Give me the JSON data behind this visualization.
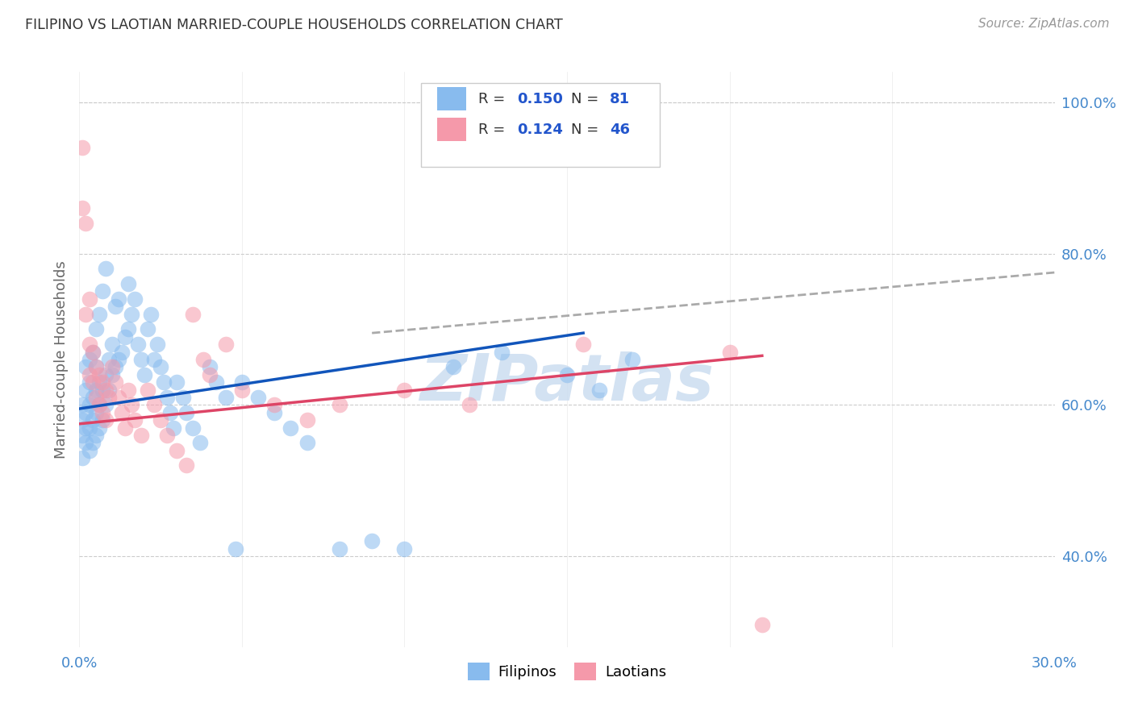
{
  "title": "FILIPINO VS LAOTIAN MARRIED-COUPLE HOUSEHOLDS CORRELATION CHART",
  "source": "Source: ZipAtlas.com",
  "ylabel": "Married-couple Households",
  "xlim": [
    0.0,
    0.3
  ],
  "ylim": [
    0.28,
    1.04
  ],
  "xtick_positions": [
    0.0,
    0.05,
    0.1,
    0.15,
    0.2,
    0.25,
    0.3
  ],
  "ytick_vals_right": [
    1.0,
    0.8,
    0.6,
    0.4
  ],
  "ytick_labels_right": [
    "100.0%",
    "80.0%",
    "60.0%",
    "40.0%"
  ],
  "filipino_color": "#88bbee",
  "laotian_color": "#f599aa",
  "filipino_line_color": "#1155bb",
  "laotian_line_color": "#dd4466",
  "dashed_line_color": "#aaaaaa",
  "watermark_color": "#ccddf0",
  "background_color": "#ffffff",
  "grid_color": "#cccccc",
  "title_color": "#333333",
  "source_color": "#999999",
  "axis_label_color": "#666666",
  "right_tick_color": "#4488cc",
  "bottom_tick_color": "#4488cc",
  "filipino_r": "0.150",
  "filipino_n": "81",
  "laotian_r": "0.124",
  "laotian_n": "46",
  "filipino_x": [
    0.001,
    0.001,
    0.001,
    0.001,
    0.002,
    0.002,
    0.002,
    0.002,
    0.002,
    0.003,
    0.003,
    0.003,
    0.003,
    0.003,
    0.004,
    0.004,
    0.004,
    0.004,
    0.005,
    0.005,
    0.005,
    0.005,
    0.005,
    0.006,
    0.006,
    0.006,
    0.006,
    0.007,
    0.007,
    0.007,
    0.008,
    0.008,
    0.008,
    0.009,
    0.009,
    0.01,
    0.01,
    0.011,
    0.011,
    0.012,
    0.012,
    0.013,
    0.014,
    0.015,
    0.015,
    0.016,
    0.017,
    0.018,
    0.019,
    0.02,
    0.021,
    0.022,
    0.023,
    0.024,
    0.025,
    0.026,
    0.027,
    0.028,
    0.029,
    0.03,
    0.032,
    0.033,
    0.035,
    0.037,
    0.04,
    0.042,
    0.045,
    0.048,
    0.05,
    0.055,
    0.06,
    0.065,
    0.07,
    0.08,
    0.09,
    0.1,
    0.115,
    0.13,
    0.15,
    0.16,
    0.17
  ],
  "filipino_y": [
    0.53,
    0.56,
    0.58,
    0.6,
    0.55,
    0.57,
    0.59,
    0.62,
    0.65,
    0.54,
    0.57,
    0.6,
    0.63,
    0.66,
    0.55,
    0.58,
    0.61,
    0.67,
    0.56,
    0.59,
    0.62,
    0.65,
    0.7,
    0.57,
    0.6,
    0.63,
    0.72,
    0.58,
    0.62,
    0.75,
    0.6,
    0.64,
    0.78,
    0.62,
    0.66,
    0.64,
    0.68,
    0.65,
    0.73,
    0.66,
    0.74,
    0.67,
    0.69,
    0.7,
    0.76,
    0.72,
    0.74,
    0.68,
    0.66,
    0.64,
    0.7,
    0.72,
    0.66,
    0.68,
    0.65,
    0.63,
    0.61,
    0.59,
    0.57,
    0.63,
    0.61,
    0.59,
    0.57,
    0.55,
    0.65,
    0.63,
    0.61,
    0.41,
    0.63,
    0.61,
    0.59,
    0.57,
    0.55,
    0.41,
    0.42,
    0.41,
    0.65,
    0.67,
    0.64,
    0.62,
    0.66
  ],
  "laotian_x": [
    0.001,
    0.001,
    0.002,
    0.002,
    0.003,
    0.003,
    0.003,
    0.004,
    0.004,
    0.005,
    0.005,
    0.006,
    0.006,
    0.007,
    0.007,
    0.008,
    0.008,
    0.009,
    0.01,
    0.011,
    0.012,
    0.013,
    0.014,
    0.015,
    0.016,
    0.017,
    0.019,
    0.021,
    0.023,
    0.025,
    0.027,
    0.03,
    0.033,
    0.035,
    0.038,
    0.04,
    0.045,
    0.05,
    0.06,
    0.07,
    0.08,
    0.1,
    0.12,
    0.155,
    0.2,
    0.21
  ],
  "laotian_y": [
    0.94,
    0.86,
    0.84,
    0.72,
    0.74,
    0.68,
    0.64,
    0.67,
    0.63,
    0.65,
    0.61,
    0.64,
    0.6,
    0.63,
    0.59,
    0.62,
    0.58,
    0.61,
    0.65,
    0.63,
    0.61,
    0.59,
    0.57,
    0.62,
    0.6,
    0.58,
    0.56,
    0.62,
    0.6,
    0.58,
    0.56,
    0.54,
    0.52,
    0.72,
    0.66,
    0.64,
    0.68,
    0.62,
    0.6,
    0.58,
    0.6,
    0.62,
    0.6,
    0.68,
    0.67,
    0.31
  ],
  "filipino_trend_x": [
    0.0,
    0.155
  ],
  "filipino_trend_y": [
    0.595,
    0.695
  ],
  "laotian_trend_x": [
    0.0,
    0.21
  ],
  "laotian_trend_y": [
    0.575,
    0.665
  ],
  "dashed_trend_x": [
    0.09,
    0.3
  ],
  "dashed_trend_y": [
    0.695,
    0.775
  ]
}
